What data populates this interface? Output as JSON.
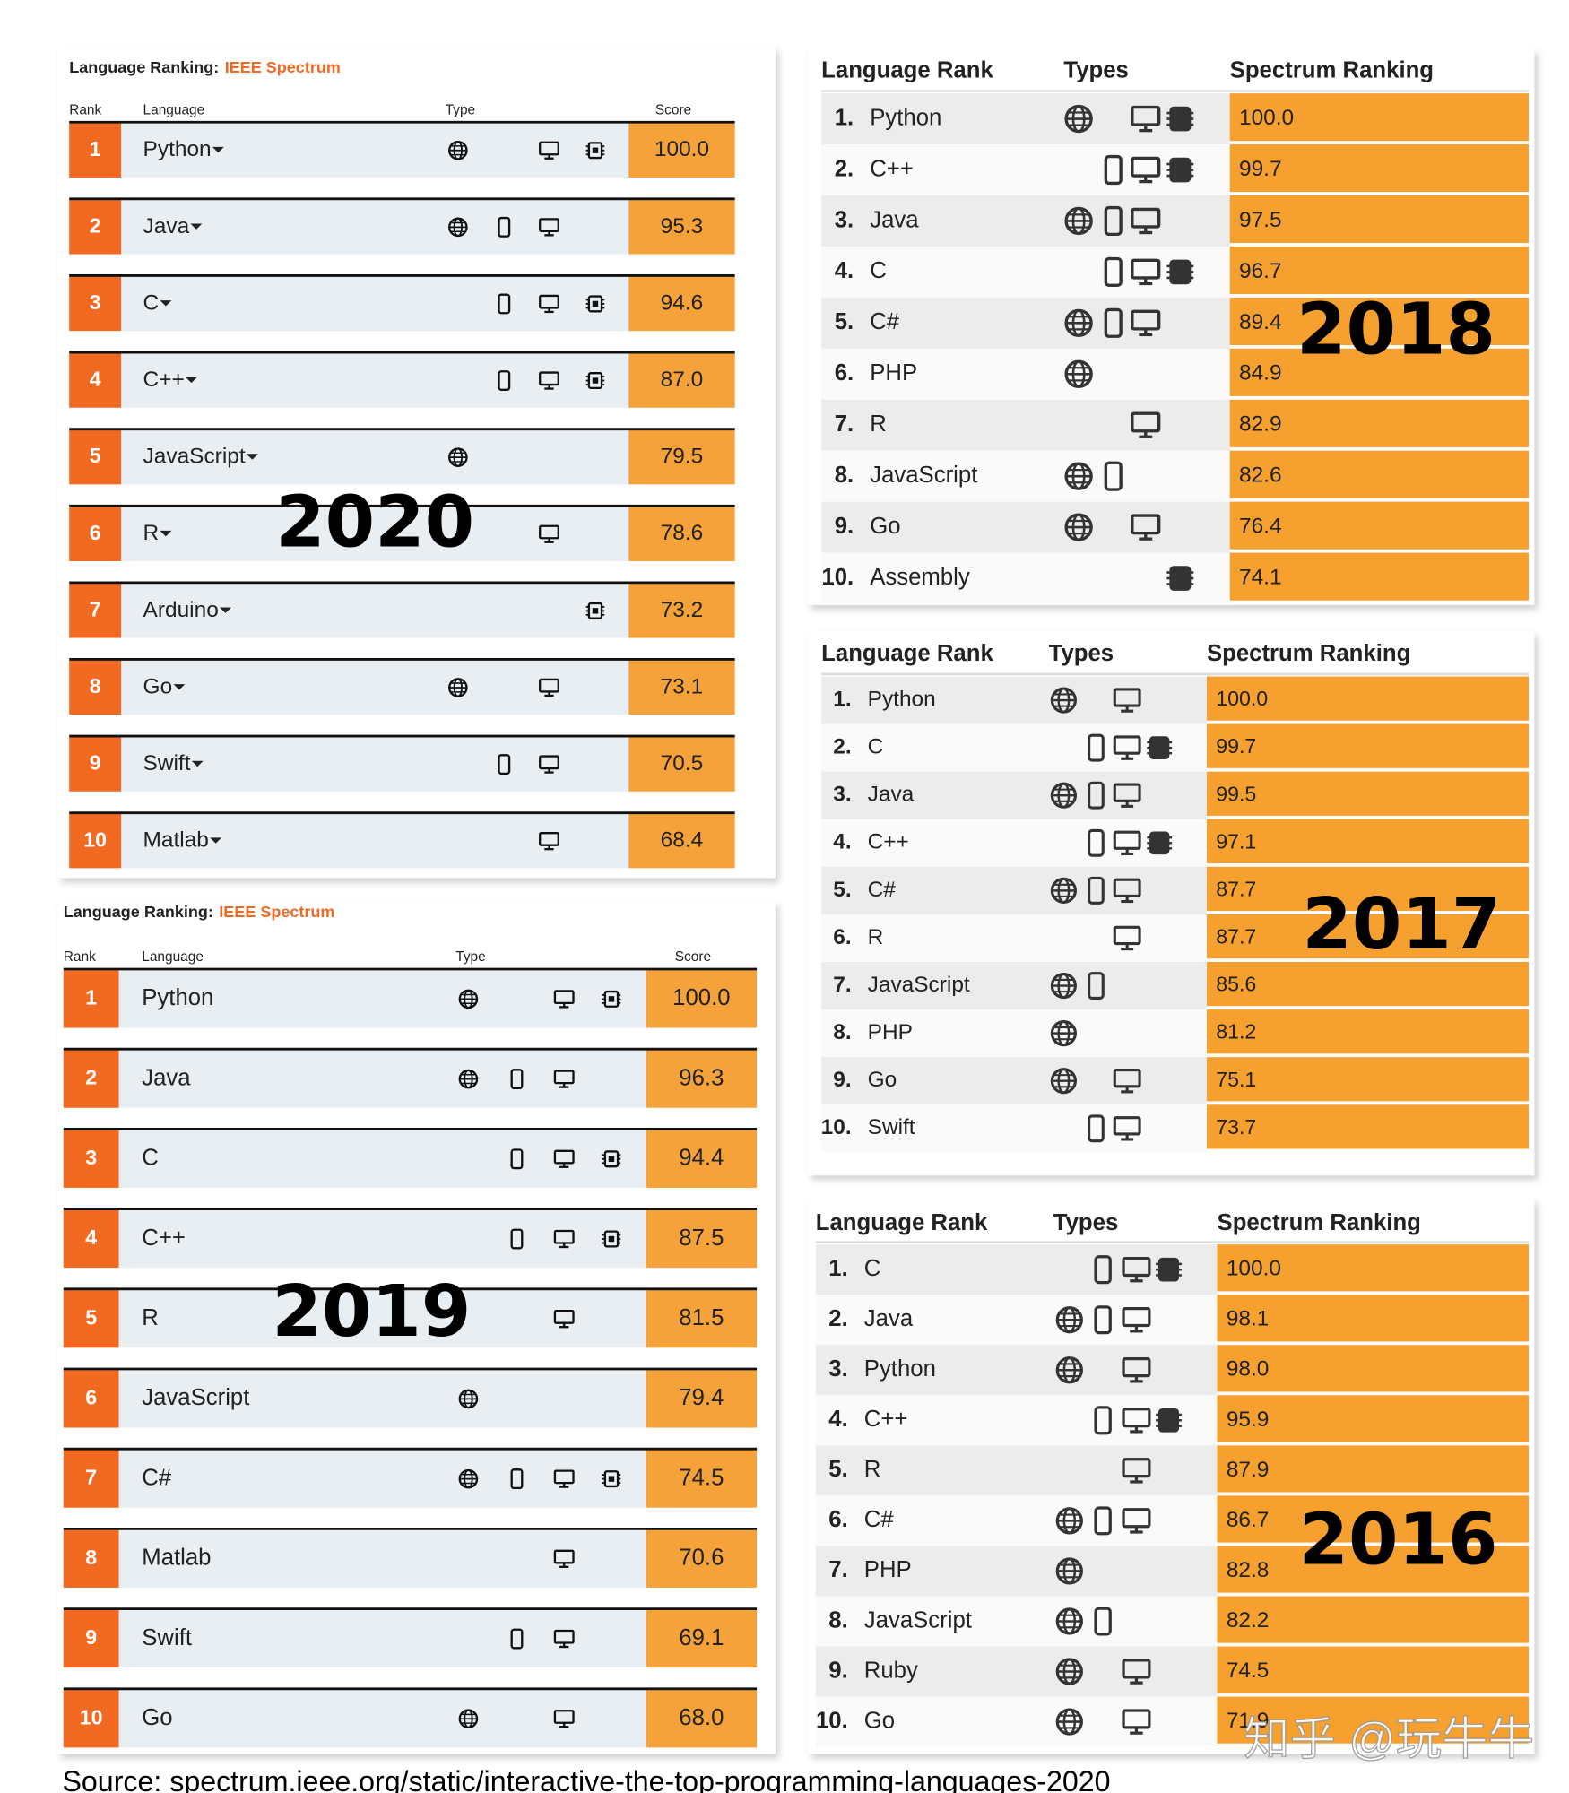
{
  "panels": [
    {
      "year": "2020",
      "title": "Language Ranking:",
      "title_source": "IEEE Spectrum",
      "headers": [
        "Rank",
        "Language",
        "Type",
        "Score"
      ],
      "rows": [
        [
          "1",
          "Python",
          "100.0"
        ],
        [
          "2",
          "Java",
          "95.3"
        ],
        [
          "3",
          "C",
          "94.6"
        ],
        [
          "4",
          "C++",
          "87.0"
        ],
        [
          "5",
          "JavaScript",
          "79.5"
        ],
        [
          "6",
          "R",
          "78.6"
        ],
        [
          "7",
          "Arduino",
          "73.2"
        ],
        [
          "8",
          "Go",
          "73.1"
        ],
        [
          "9",
          "Swift",
          "70.5"
        ],
        [
          "10",
          "Matlab",
          "68.4"
        ]
      ]
    },
    {
      "year": "2019",
      "title": "Language Ranking:",
      "title_source": "IEEE Spectrum",
      "headers": [
        "Rank",
        "Language",
        "Type",
        "Score"
      ],
      "rows": [
        [
          "1",
          "Python",
          "100.0"
        ],
        [
          "2",
          "Java",
          "96.3"
        ],
        [
          "3",
          "C",
          "94.4"
        ],
        [
          "4",
          "C++",
          "87.5"
        ],
        [
          "5",
          "R",
          "81.5"
        ],
        [
          "6",
          "JavaScript",
          "79.4"
        ],
        [
          "7",
          "C#",
          "74.5"
        ],
        [
          "8",
          "Matlab",
          "70.6"
        ],
        [
          "9",
          "Swift",
          "69.1"
        ],
        [
          "10",
          "Go",
          "68.0"
        ]
      ]
    },
    {
      "year": "2018",
      "headers": [
        "Language Rank",
        "Types",
        "Spectrum Ranking"
      ],
      "rows": [
        [
          "1.",
          "Python",
          "100.0"
        ],
        [
          "2.",
          "C++",
          "99.7"
        ],
        [
          "3.",
          "Java",
          "97.5"
        ],
        [
          "4.",
          "C",
          "96.7"
        ],
        [
          "5.",
          "C#",
          "89.4"
        ],
        [
          "6.",
          "PHP",
          "84.9"
        ],
        [
          "7.",
          "R",
          "82.9"
        ],
        [
          "8.",
          "JavaScript",
          "82.6"
        ],
        [
          "9.",
          "Go",
          "76.4"
        ],
        [
          "10.",
          "Assembly",
          "74.1"
        ]
      ]
    },
    {
      "year": "2017",
      "headers": [
        "Language Rank",
        "Types",
        "Spectrum Ranking"
      ],
      "rows": [
        [
          "1.",
          "Python",
          "100.0"
        ],
        [
          "2.",
          "C",
          "99.7"
        ],
        [
          "3.",
          "Java",
          "99.5"
        ],
        [
          "4.",
          "C++",
          "97.1"
        ],
        [
          "5.",
          "C#",
          "87.7"
        ],
        [
          "6.",
          "R",
          "87.7"
        ],
        [
          "7.",
          "JavaScript",
          "85.6"
        ],
        [
          "8.",
          "PHP",
          "81.2"
        ],
        [
          "9.",
          "Go",
          "75.1"
        ],
        [
          "10.",
          "Swift",
          "73.7"
        ]
      ]
    },
    {
      "year": "2016",
      "headers": [
        "Language Rank",
        "Types",
        "Spectrum Ranking"
      ],
      "rows": [
        [
          "1.",
          "C",
          "100.0"
        ],
        [
          "2.",
          "Java",
          "98.1"
        ],
        [
          "3.",
          "Python",
          "98.0"
        ],
        [
          "4.",
          "C++",
          "95.9"
        ],
        [
          "5.",
          "R",
          "87.9"
        ],
        [
          "6.",
          "C#",
          "86.7"
        ],
        [
          "7.",
          "PHP",
          "82.8"
        ],
        [
          "8.",
          "JavaScript",
          "82.2"
        ],
        [
          "9.",
          "Ruby",
          "74.5"
        ],
        [
          "10.",
          "Go",
          "71.9"
        ]
      ]
    }
  ],
  "source": "Source: spectrum.ieee.org/static/interactive-the-top-programming-languages-2020",
  "watermark": "知乎 @玩牛牛"
}
